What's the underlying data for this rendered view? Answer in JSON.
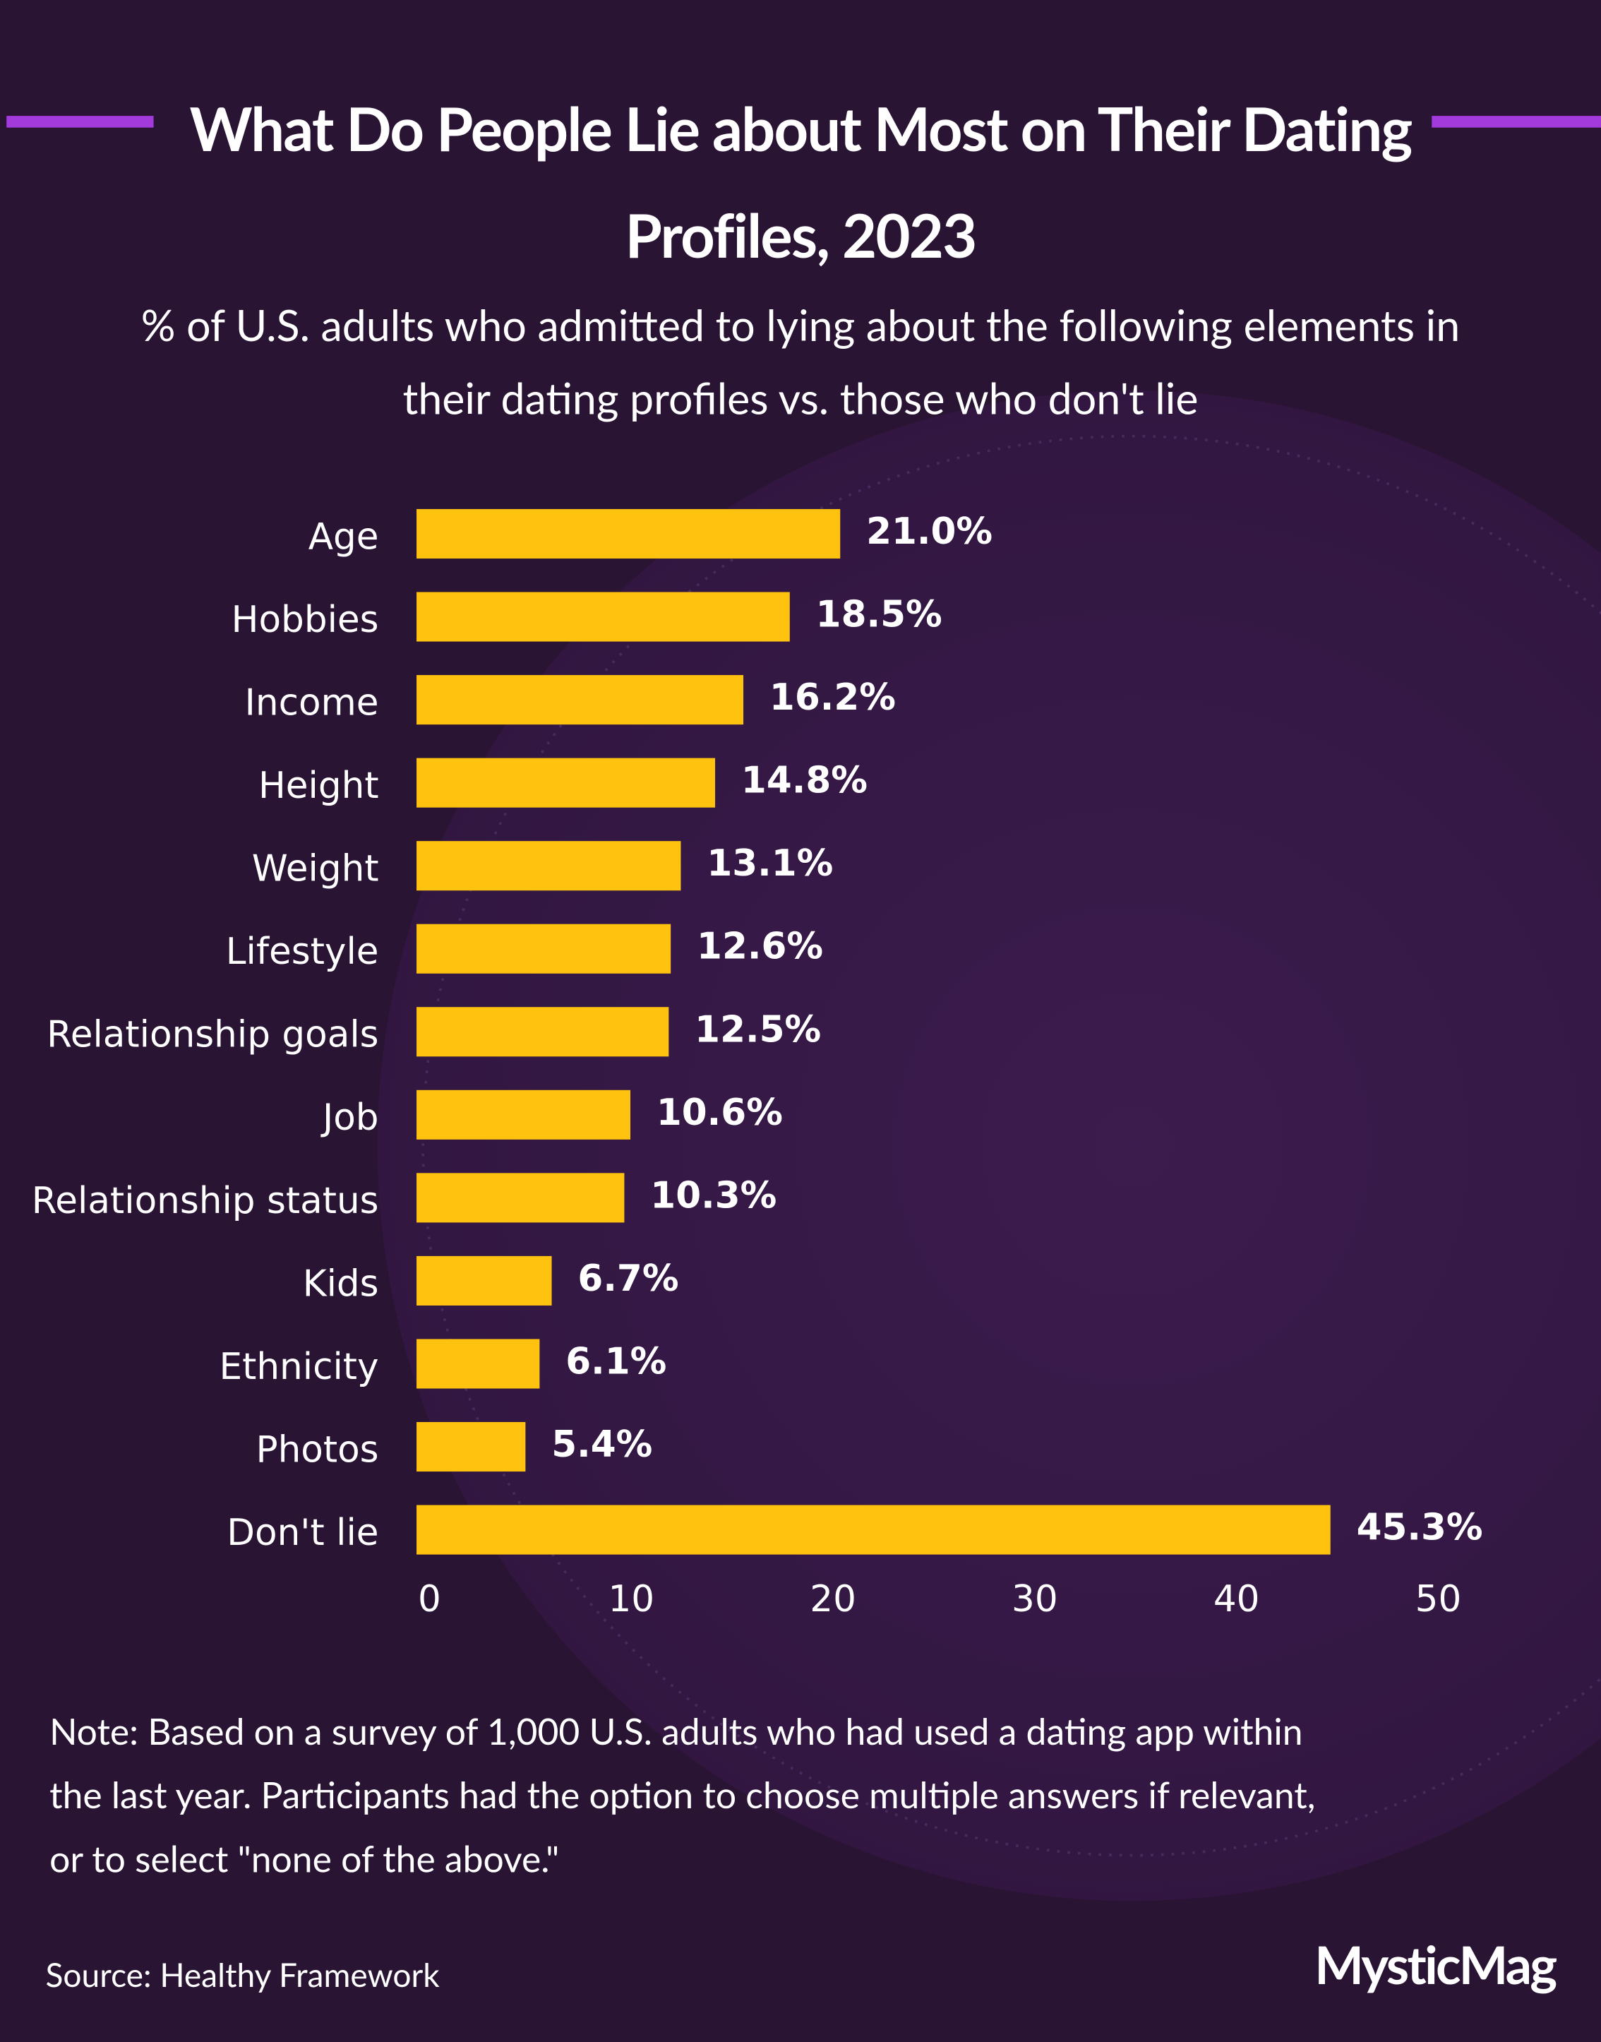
{
  "chart_data": {
    "type": "bar",
    "orientation": "horizontal",
    "title": "What Do People Lie about Most on Their Dating Profiles, 2023",
    "subtitle": "% of U.S. adults who admitted to lying about the following elements in their dating profiles vs. those who don't lie",
    "categories": [
      "Age",
      "Hobbies",
      "Income",
      "Height",
      "Weight",
      "Lifestyle",
      "Relationship goals",
      "Job",
      "Relationship status",
      "Kids",
      "Ethnicity",
      "Photos",
      "Don't lie"
    ],
    "values": [
      21.0,
      18.5,
      16.2,
      14.8,
      13.1,
      12.6,
      12.5,
      10.6,
      10.3,
      6.7,
      6.1,
      5.4,
      45.3
    ],
    "value_labels": [
      "21.0%",
      "18.5%",
      "16.2%",
      "14.8%",
      "13.1%",
      "12.6%",
      "12.5%",
      "10.6%",
      "10.3%",
      "6.7%",
      "6.1%",
      "5.4%",
      "45.3%"
    ],
    "color": "#ffc20e",
    "xlim": [
      0,
      50
    ],
    "xticks": [
      0,
      10,
      20,
      30,
      40,
      50
    ],
    "grid": false,
    "note": "Note: Based on a survey of 1,000 U.S. adults who had used a dating app within the last year. Participants had the option to choose multiple answers if relevant, or to select \"none of the above.\"",
    "source": "Source: Healthy Framework",
    "brand": "MysticMag"
  }
}
